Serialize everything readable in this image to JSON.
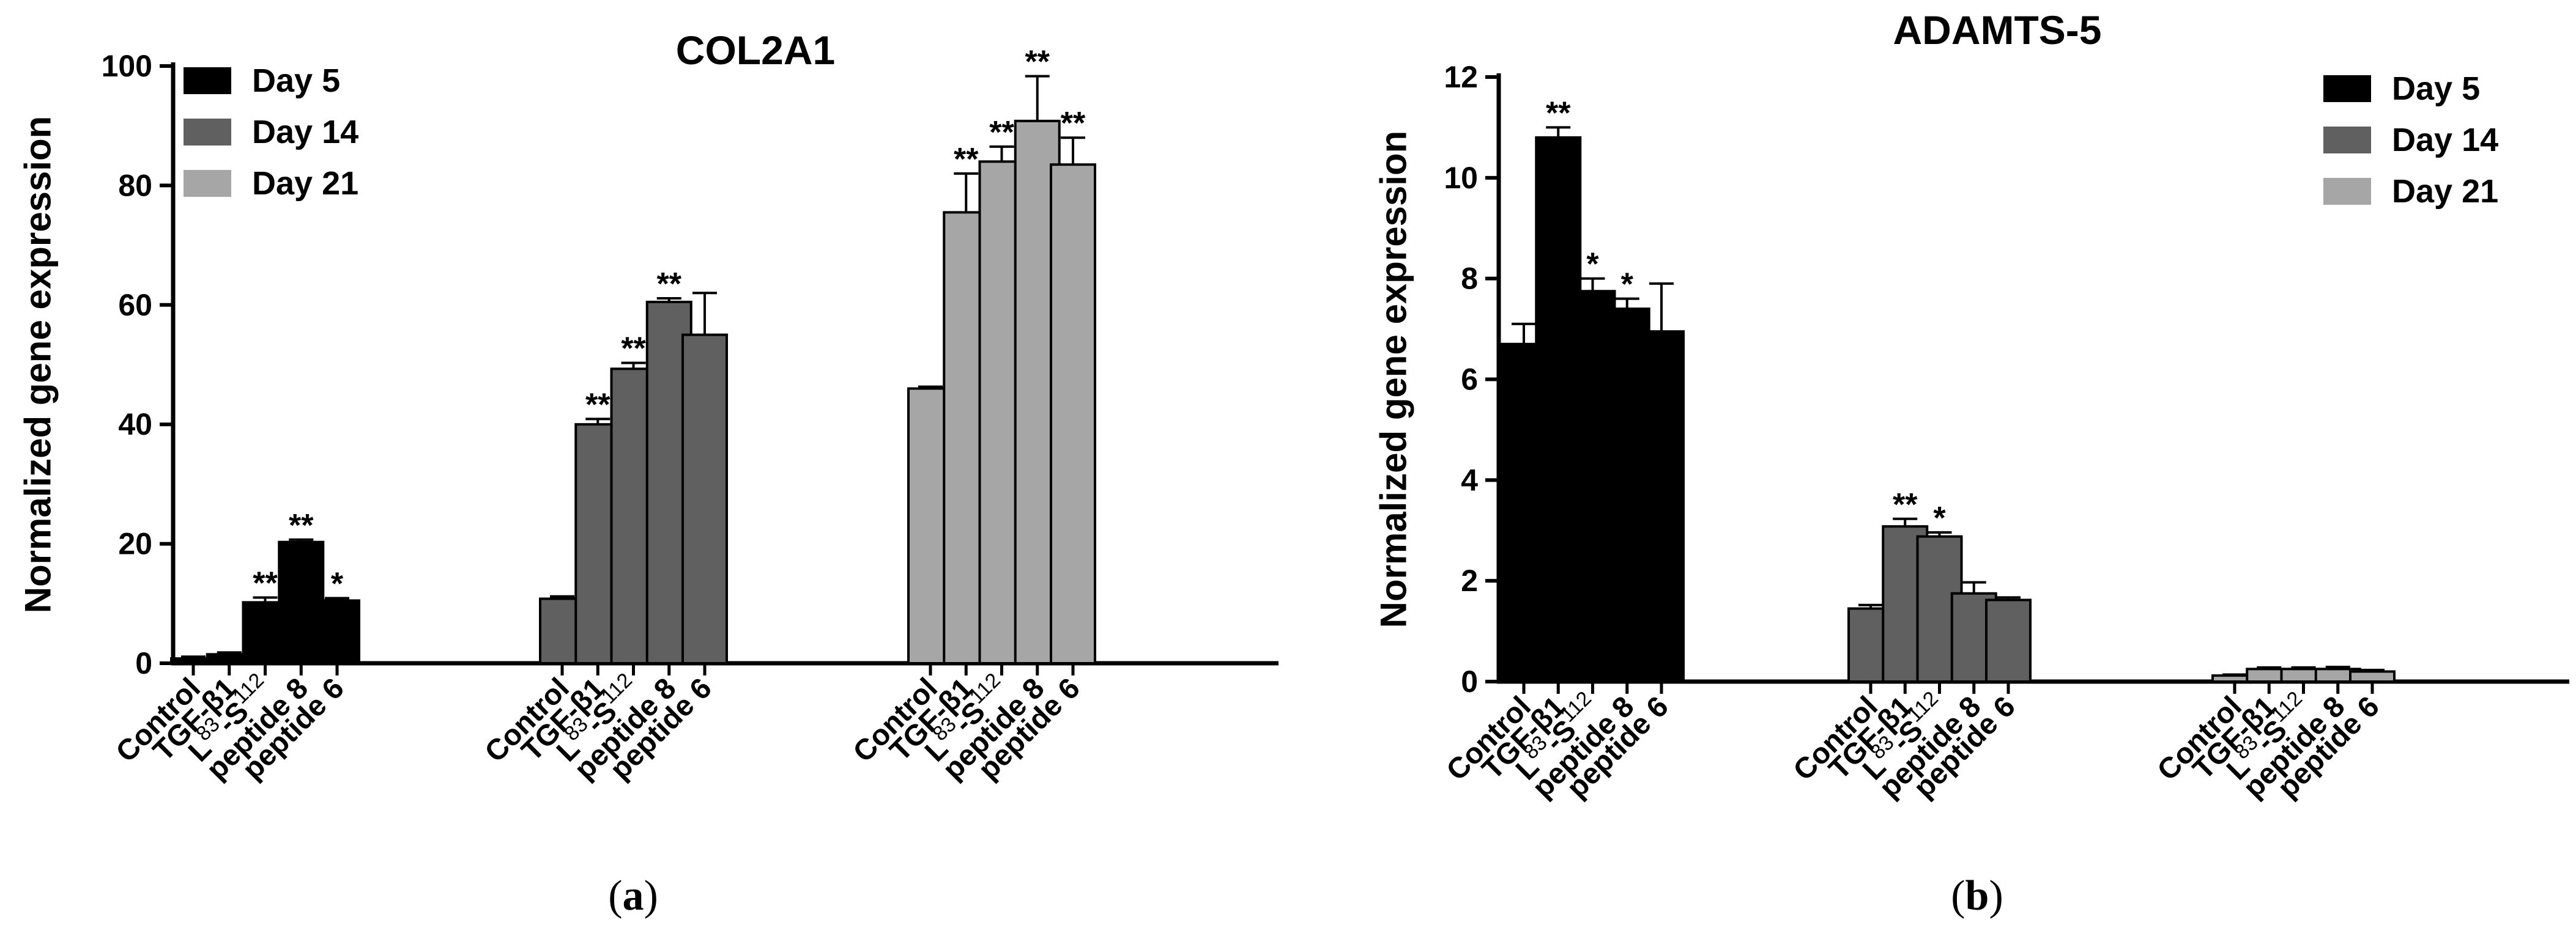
{
  "chart_data": [
    {
      "type": "bar",
      "panel_label": "a",
      "title": "COL2A1",
      "xlabel": "",
      "ylabel": "Normalized gene expression",
      "ylim": [
        0,
        100
      ],
      "yticks": [
        0,
        20,
        40,
        60,
        80,
        100
      ],
      "legend_position": "top-left",
      "categories": [
        "Control",
        "TGF-β1",
        "L83-S112",
        "peptide 8",
        "peptide 6"
      ],
      "category_labels": [
        {
          "text": "Control"
        },
        {
          "text": "TGF-β1"
        },
        {
          "main": "L",
          "sup": "83",
          "dash": "-S",
          "sup2": "112"
        },
        {
          "text": "peptide 8"
        },
        {
          "text": "peptide 6"
        }
      ],
      "series": [
        {
          "name": "Day 5",
          "color": "#000000",
          "values": [
            0.8,
            1.5,
            10.2,
            20.3,
            10.5
          ],
          "errors": [
            0.3,
            0.3,
            0.8,
            0.4,
            0.4
          ],
          "significance": [
            "",
            "",
            "**",
            "**",
            "*"
          ]
        },
        {
          "name": "Day 14",
          "color": "#606060",
          "values": [
            10.8,
            40.0,
            49.3,
            60.5,
            55.0
          ],
          "errors": [
            0.4,
            0.9,
            1.0,
            0.6,
            7.0
          ],
          "significance": [
            "",
            "**",
            "**",
            "**",
            ""
          ]
        },
        {
          "name": "Day 21",
          "color": "#a6a6a6",
          "values": [
            46.0,
            75.5,
            84.0,
            90.8,
            83.5
          ],
          "errors": [
            0.3,
            6.5,
            2.5,
            7.5,
            4.5
          ],
          "significance": [
            "",
            "**",
            "**",
            "**",
            "**"
          ]
        }
      ]
    },
    {
      "type": "bar",
      "panel_label": "b",
      "title": "ADAMTS-5",
      "xlabel": "",
      "ylabel": "Normalized gene expression",
      "ylim": [
        0,
        12
      ],
      "yticks": [
        0,
        2,
        4,
        6,
        8,
        10,
        12
      ],
      "legend_position": "top-right",
      "categories": [
        "Control",
        "TGF-β1",
        "L83-S112",
        "peptide 8",
        "peptide 6"
      ],
      "category_labels": [
        {
          "text": "Control"
        },
        {
          "text": "TGF-β1"
        },
        {
          "main": "L",
          "sup": "83",
          "dash": "-S",
          "sup2": "112"
        },
        {
          "text": "peptide 8"
        },
        {
          "text": "peptide 6"
        }
      ],
      "series": [
        {
          "name": "Day 5",
          "color": "#000000",
          "values": [
            6.7,
            10.8,
            7.75,
            7.4,
            6.95
          ],
          "errors": [
            0.4,
            0.2,
            0.25,
            0.2,
            0.95
          ],
          "significance": [
            "",
            "**",
            "*",
            "*",
            ""
          ]
        },
        {
          "name": "Day 14",
          "color": "#606060",
          "values": [
            1.45,
            3.08,
            2.88,
            1.75,
            1.62
          ],
          "errors": [
            0.07,
            0.15,
            0.08,
            0.22,
            0.05
          ],
          "significance": [
            "",
            "**",
            "*",
            "",
            ""
          ]
        },
        {
          "name": "Day 21",
          "color": "#a6a6a6",
          "values": [
            0.12,
            0.25,
            0.25,
            0.25,
            0.2
          ],
          "errors": [
            0.02,
            0.03,
            0.03,
            0.04,
            0.03
          ],
          "significance": [
            "",
            "",
            "",
            "",
            ""
          ]
        }
      ]
    }
  ]
}
